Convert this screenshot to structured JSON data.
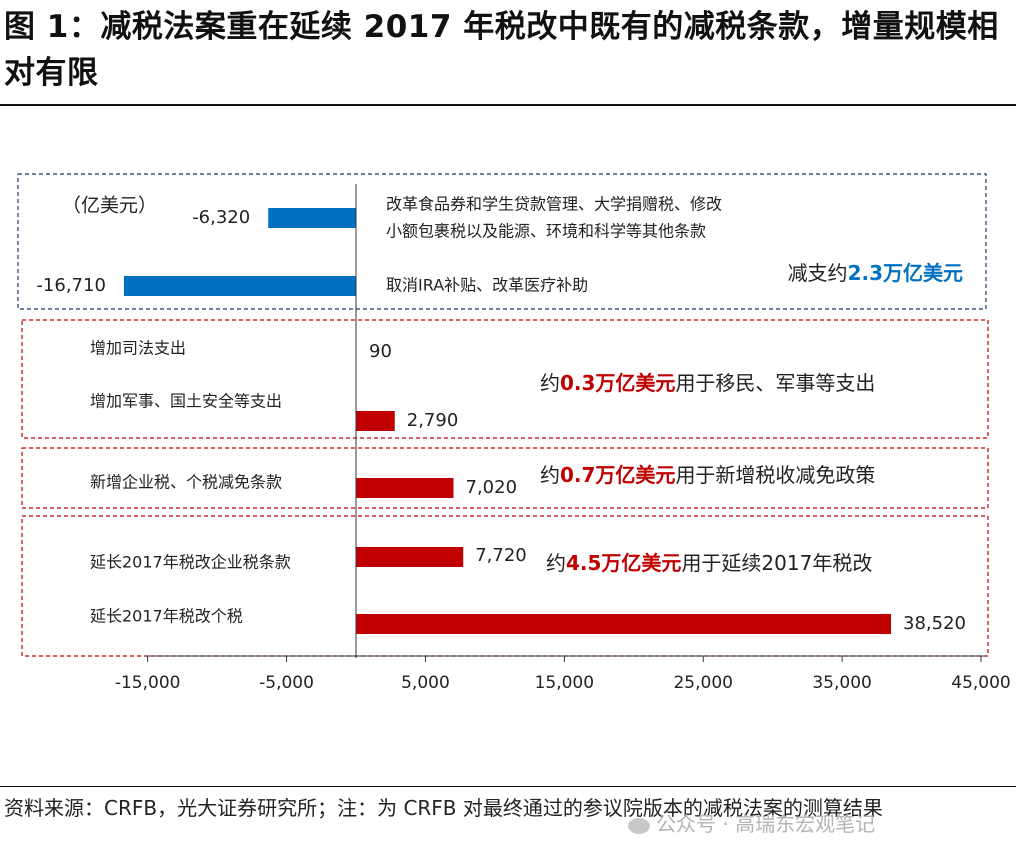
{
  "title": "图 1：减税法案重在延续 2017 年税改中既有的减税条款，增量规模相对有限",
  "source": "资料来源：CRFB，光大证券研究所；注：为 CRFB 对最终通过的参议院版本的减税法案的测算结果",
  "watermark": "公众号 · 高瑞东宏观笔记",
  "colors": {
    "negative": "#0070c0",
    "positive": "#c00000",
    "blue_box": "#1f3864",
    "red_box": "#c00000"
  },
  "chart_data": {
    "type": "bar",
    "orientation": "horizontal",
    "unit_label": "（亿美元）",
    "xlim": [
      -20000,
      45000
    ],
    "xticks": [
      -15000,
      -5000,
      5000,
      15000,
      25000,
      35000,
      45000
    ],
    "xtick_labels": [
      "-15,000",
      "-5,000",
      "5,000",
      "15,000",
      "25,000",
      "35,000",
      "45,000"
    ],
    "grid": false,
    "bars": [
      {
        "category": "改革食品券和学生贷款管理、大学捐赠税、修改小额包裹税以及能源、环境和科学等其他条款",
        "category_lines": [
          "改革食品券和学生贷款管理、大学捐赠税、修改",
          "小额包裹税以及能源、环境和科学等其他条款"
        ],
        "value": -6320,
        "value_label": "-6,320"
      },
      {
        "category": "取消IRA补贴、改革医疗补助",
        "category_lines": [
          "取消IRA补贴、改革医疗补助"
        ],
        "value": -16710,
        "value_label": "-16,710"
      },
      {
        "category": "增加司法支出",
        "category_lines": [
          "增加司法支出"
        ],
        "value": 90,
        "value_label": "90"
      },
      {
        "category": "增加军事、国土安全等支出",
        "category_lines": [
          "增加军事、国土安全等支出"
        ],
        "value": 2790,
        "value_label": "2,790"
      },
      {
        "category": "新增企业税、个税减免条款",
        "category_lines": [
          "新增企业税、个税减免条款"
        ],
        "value": 7020,
        "value_label": "7,020"
      },
      {
        "category": "延长2017年税改企业税条款",
        "category_lines": [
          "延长2017年税改企业税条款"
        ],
        "value": 7720,
        "value_label": "7,720"
      },
      {
        "category": "延长2017年税改个税",
        "category_lines": [
          "延长2017年税改个税"
        ],
        "value": 38520,
        "value_label": "38,520"
      }
    ],
    "annotations": [
      {
        "prefix": "减支约",
        "highlight": "2.3万亿美元",
        "suffix": "",
        "color": "#0070c0"
      },
      {
        "prefix": "约",
        "highlight": "0.3万亿美元",
        "suffix": "用于移民、军事等支出",
        "color": "#c00000"
      },
      {
        "prefix": "约",
        "highlight": "0.7万亿美元",
        "suffix": "用于新增税收减免政策",
        "color": "#c00000"
      },
      {
        "prefix": "约",
        "highlight": "4.5万亿美元",
        "suffix": "用于延续2017年税改",
        "color": "#c00000"
      }
    ]
  }
}
